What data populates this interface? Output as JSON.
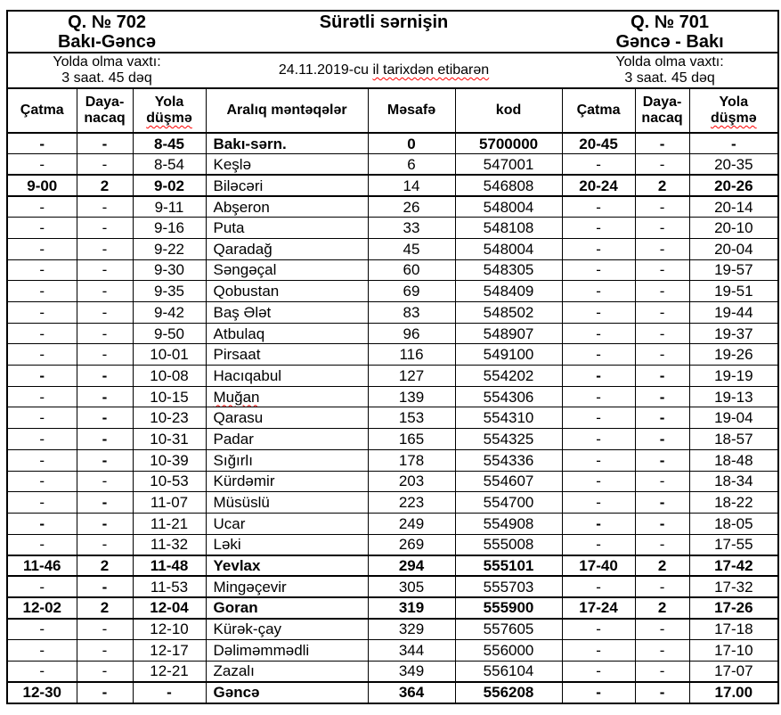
{
  "title": "Sürətli sərnişin",
  "effective_date": {
    "prefix": "24.11.2019-cu",
    "misspelled_part": "il tarixdən etibarən"
  },
  "spellcheck_color": "#ff0000",
  "train_702": {
    "number": "Q. № 702",
    "route": "Bakı-Gəncə",
    "travel_time_label": "Yolda olma vaxtı:",
    "travel_time": "3 saat. 45 dəq"
  },
  "train_701": {
    "number": "Q. № 701",
    "route": "Gəncə - Bakı",
    "travel_time_label": "Yolda olma vaxtı:",
    "travel_time": "3 saat. 45 dəq"
  },
  "table": {
    "columns": [
      {
        "key": "catma-702",
        "line1": "Çatma",
        "line2": "",
        "wavy2": false
      },
      {
        "key": "dayanacaq-702",
        "line1": "Daya-",
        "line2": "nacaq",
        "wavy2": false
      },
      {
        "key": "yola-dusme-702",
        "line1": "Yola",
        "line2": "düşmə",
        "wavy2": true
      },
      {
        "key": "station",
        "line1": "Aralıq məntəqələr",
        "line2": "",
        "wavy2": false
      },
      {
        "key": "mesafe",
        "line1": "Məsafə",
        "line2": "",
        "wavy2": false
      },
      {
        "key": "kod",
        "line1": "kod",
        "line2": "",
        "wavy2": false
      },
      {
        "key": "catma-701",
        "line1": "Çatma",
        "line2": "",
        "wavy2": false
      },
      {
        "key": "dayanacaq-701",
        "line1": "Daya-",
        "line2": "nacaq",
        "wavy2": false
      },
      {
        "key": "yola-dusme-701",
        "line1": "Yola",
        "line2": "düşmə",
        "wavy2": true
      }
    ],
    "rows": [
      {
        "cells": [
          "-",
          "-",
          "8-45",
          "Bakı-sərn.",
          "0",
          "5700000",
          "20-45",
          "-",
          "-"
        ],
        "bold": [
          1,
          1,
          1,
          1,
          1,
          1,
          1,
          1,
          1
        ],
        "emphasis": false,
        "wavy_station": false
      },
      {
        "cells": [
          "-",
          "-",
          "8-54",
          "Keşlə",
          "6",
          "547001",
          "-",
          "-",
          "20-35"
        ],
        "bold": [
          0,
          0,
          0,
          0,
          0,
          0,
          0,
          0,
          0
        ],
        "emphasis": false,
        "wavy_station": false
      },
      {
        "cells": [
          "9-00",
          "2",
          "9-02",
          "Biləcəri",
          "14",
          "546808",
          "20-24",
          "2",
          "20-26"
        ],
        "bold": [
          1,
          1,
          1,
          0,
          0,
          0,
          1,
          1,
          1
        ],
        "emphasis": true,
        "wavy_station": false
      },
      {
        "cells": [
          "-",
          "-",
          "9-11",
          "Abşeron",
          "26",
          "548004",
          "-",
          "-",
          "20-14"
        ],
        "bold": [
          0,
          0,
          0,
          0,
          0,
          0,
          0,
          0,
          0
        ],
        "emphasis": false,
        "wavy_station": false
      },
      {
        "cells": [
          "-",
          "-",
          "9-16",
          "Puta",
          "33",
          "548108",
          "-",
          "-",
          "20-10"
        ],
        "bold": [
          0,
          0,
          0,
          0,
          0,
          0,
          0,
          0,
          0
        ],
        "emphasis": false,
        "wavy_station": false
      },
      {
        "cells": [
          "-",
          "-",
          "9-22",
          "Qaradağ",
          "45",
          "548004",
          "-",
          "-",
          "20-04"
        ],
        "bold": [
          0,
          0,
          0,
          0,
          0,
          0,
          0,
          0,
          0
        ],
        "emphasis": false,
        "wavy_station": false
      },
      {
        "cells": [
          "-",
          "-",
          "9-30",
          "Səngəçal",
          "60",
          "548305",
          "-",
          "-",
          "19-57"
        ],
        "bold": [
          0,
          0,
          0,
          0,
          0,
          0,
          0,
          0,
          0
        ],
        "emphasis": false,
        "wavy_station": false
      },
      {
        "cells": [
          "-",
          "-",
          "9-35",
          "Qobustan",
          "69",
          "548409",
          "-",
          "-",
          "19-51"
        ],
        "bold": [
          0,
          0,
          0,
          0,
          0,
          0,
          0,
          0,
          0
        ],
        "emphasis": false,
        "wavy_station": false
      },
      {
        "cells": [
          "-",
          "-",
          "9-42",
          "Baş Ələt",
          "83",
          "548502",
          "-",
          "-",
          "19-44"
        ],
        "bold": [
          0,
          0,
          0,
          0,
          0,
          0,
          0,
          0,
          0
        ],
        "emphasis": false,
        "wavy_station": false
      },
      {
        "cells": [
          "-",
          "-",
          "9-50",
          "Atbulaq",
          "96",
          "548907",
          "-",
          "-",
          "19-37"
        ],
        "bold": [
          0,
          0,
          0,
          0,
          0,
          0,
          0,
          0,
          0
        ],
        "emphasis": false,
        "wavy_station": false
      },
      {
        "cells": [
          "-",
          "-",
          "10-01",
          "Pirsaat",
          "116",
          "549100",
          "-",
          "-",
          "19-26"
        ],
        "bold": [
          0,
          0,
          0,
          0,
          0,
          0,
          0,
          0,
          0
        ],
        "emphasis": false,
        "wavy_station": false
      },
      {
        "cells": [
          "-",
          "-",
          "10-08",
          "Hacıqabul",
          "127",
          "554202",
          "-",
          "-",
          "19-19"
        ],
        "bold": [
          1,
          1,
          0,
          0,
          0,
          0,
          1,
          1,
          0
        ],
        "emphasis": false,
        "wavy_station": false
      },
      {
        "cells": [
          "-",
          "-",
          "10-15",
          "Muğan",
          "139",
          "554306",
          "-",
          "-",
          "19-13"
        ],
        "bold": [
          0,
          1,
          0,
          0,
          0,
          0,
          0,
          1,
          0
        ],
        "emphasis": false,
        "wavy_station": true
      },
      {
        "cells": [
          "-",
          "-",
          "10-23",
          "Qarasu",
          "153",
          "554310",
          "-",
          "-",
          "19-04"
        ],
        "bold": [
          0,
          1,
          0,
          0,
          0,
          0,
          0,
          1,
          0
        ],
        "emphasis": false,
        "wavy_station": false
      },
      {
        "cells": [
          "-",
          "-",
          "10-31",
          "Padar",
          "165",
          "554325",
          "-",
          "-",
          "18-57"
        ],
        "bold": [
          0,
          1,
          0,
          0,
          0,
          0,
          0,
          1,
          0
        ],
        "emphasis": false,
        "wavy_station": false
      },
      {
        "cells": [
          "-",
          "-",
          "10-39",
          "Sığırlı",
          "178",
          "554336",
          "-",
          "-",
          "18-48"
        ],
        "bold": [
          0,
          1,
          0,
          0,
          0,
          0,
          0,
          1,
          0
        ],
        "emphasis": false,
        "wavy_station": false
      },
      {
        "cells": [
          "-",
          "-",
          "10-53",
          "Kürdəmir",
          "203",
          "554607",
          "-",
          "-",
          "18-34"
        ],
        "bold": [
          0,
          0,
          0,
          0,
          0,
          0,
          0,
          0,
          0
        ],
        "emphasis": false,
        "wavy_station": false
      },
      {
        "cells": [
          "-",
          "-",
          "11-07",
          "Müsüslü",
          "223",
          "554700",
          "-",
          "-",
          "18-22"
        ],
        "bold": [
          0,
          1,
          0,
          0,
          0,
          0,
          0,
          1,
          0
        ],
        "emphasis": false,
        "wavy_station": false
      },
      {
        "cells": [
          "-",
          "-",
          "11-21",
          "Ucar",
          "249",
          "554908",
          "-",
          "-",
          "18-05"
        ],
        "bold": [
          1,
          1,
          0,
          0,
          0,
          0,
          1,
          1,
          0
        ],
        "emphasis": false,
        "wavy_station": false
      },
      {
        "cells": [
          "-",
          "-",
          "11-32",
          "Ləki",
          "269",
          "555008",
          "-",
          "-",
          "17-55"
        ],
        "bold": [
          0,
          0,
          0,
          0,
          0,
          0,
          0,
          0,
          0
        ],
        "emphasis": false,
        "wavy_station": false
      },
      {
        "cells": [
          "11-46",
          "2",
          "11-48",
          "Yevlax",
          "294",
          "555101",
          "17-40",
          "2",
          "17-42"
        ],
        "bold": [
          1,
          1,
          1,
          1,
          1,
          1,
          1,
          1,
          1
        ],
        "emphasis": true,
        "wavy_station": false
      },
      {
        "cells": [
          "-",
          "-",
          "11-53",
          "Mingəçevir",
          "305",
          "555703",
          "-",
          "-",
          "17-32"
        ],
        "bold": [
          0,
          1,
          0,
          0,
          0,
          0,
          0,
          0,
          0
        ],
        "emphasis": false,
        "wavy_station": false
      },
      {
        "cells": [
          "12-02",
          "2",
          "12-04",
          "Goran",
          "319",
          "555900",
          "17-24",
          "2",
          "17-26"
        ],
        "bold": [
          1,
          1,
          1,
          1,
          1,
          1,
          1,
          1,
          1
        ],
        "emphasis": true,
        "wavy_station": false
      },
      {
        "cells": [
          "-",
          "-",
          "12-10",
          "Kürək-çay",
          "329",
          "557605",
          "-",
          "-",
          "17-18"
        ],
        "bold": [
          0,
          0,
          0,
          0,
          0,
          0,
          0,
          0,
          0
        ],
        "emphasis": false,
        "wavy_station": false
      },
      {
        "cells": [
          "-",
          "-",
          "12-17",
          "Dəliməmmədli",
          "344",
          "556000",
          "-",
          "-",
          "17-10"
        ],
        "bold": [
          0,
          0,
          0,
          0,
          0,
          0,
          0,
          0,
          0
        ],
        "emphasis": false,
        "wavy_station": false
      },
      {
        "cells": [
          "-",
          "-",
          "12-21",
          "Zazalı",
          "349",
          "556104",
          "-",
          "-",
          "17-07"
        ],
        "bold": [
          0,
          0,
          0,
          0,
          0,
          0,
          0,
          0,
          0
        ],
        "emphasis": false,
        "wavy_station": false
      },
      {
        "cells": [
          "12-30",
          "-",
          "-",
          "Gəncə",
          "364",
          "556208",
          "-",
          "-",
          "17.00"
        ],
        "bold": [
          1,
          1,
          1,
          1,
          1,
          1,
          1,
          1,
          1
        ],
        "emphasis": true,
        "wavy_station": false
      }
    ]
  }
}
